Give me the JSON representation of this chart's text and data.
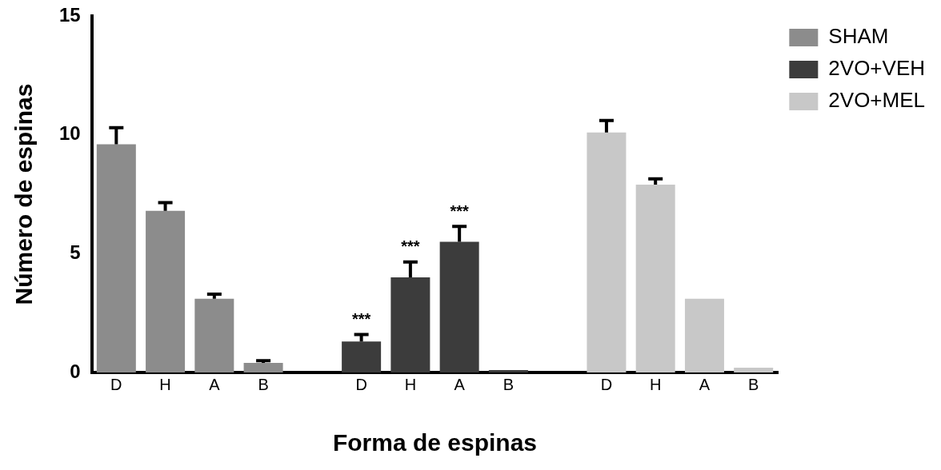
{
  "chart_data": {
    "type": "bar",
    "xlabel": "Forma de espinas",
    "ylabel": "Número de espinas",
    "categories": [
      "D",
      "H",
      "A",
      "B",
      null,
      "D",
      "H",
      "A",
      "B",
      null,
      "D",
      "H",
      "A",
      "B"
    ],
    "series": [
      {
        "name": "SHAM",
        "color": "#8c8c8c",
        "values": [
          9.6,
          6.8,
          3.1,
          0.4,
          null,
          null,
          null,
          null,
          null,
          null,
          null,
          null,
          null,
          null
        ],
        "errors": [
          0.7,
          0.35,
          0.2,
          0.1,
          null,
          null,
          null,
          null,
          null,
          null,
          null,
          null,
          null,
          null
        ]
      },
      {
        "name": "2VO+VEH",
        "color": "#3c3c3c",
        "values": [
          null,
          null,
          null,
          null,
          null,
          1.3,
          4.0,
          5.5,
          0.1,
          null,
          null,
          null,
          null,
          null
        ],
        "errors": [
          null,
          null,
          null,
          null,
          null,
          0.3,
          0.65,
          0.65,
          null,
          null,
          null,
          null,
          null,
          null
        ],
        "value_labels": [
          null,
          null,
          null,
          null,
          null,
          "***",
          "***",
          "***",
          null,
          null,
          null,
          null,
          null,
          null
        ]
      },
      {
        "name": "2VO+MEL",
        "color": "#c8c8c8",
        "values": [
          null,
          null,
          null,
          null,
          null,
          null,
          null,
          null,
          null,
          null,
          10.1,
          7.9,
          3.1,
          0.2
        ],
        "errors": [
          null,
          null,
          null,
          null,
          null,
          null,
          null,
          null,
          null,
          null,
          0.5,
          0.25,
          null,
          null
        ]
      }
    ],
    "ylim": [
      0,
      15
    ],
    "yticks": [
      0,
      5,
      10,
      15
    ],
    "grid": false,
    "legend": "top right"
  }
}
